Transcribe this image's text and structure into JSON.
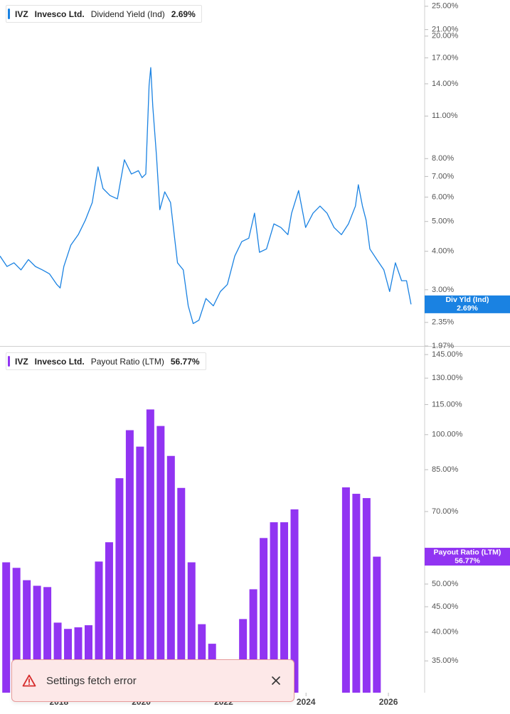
{
  "chart_data": [
    {
      "type": "line",
      "ticker": "IVZ",
      "company": "Invesco Ltd.",
      "last_label": "2.69%",
      "tag": [
        "Div Yld (Ind)",
        "2.69%"
      ],
      "log_scale": true,
      "xlim": [
        2016.57,
        2026.88
      ],
      "ylim": [
        1.97,
        26.2
      ],
      "yticks": [
        {
          "value": 25,
          "label": "25.00%"
        },
        {
          "value": 21,
          "label": "21.00%"
        },
        {
          "value": 20,
          "label": "20.00%"
        },
        {
          "value": 17,
          "label": "17.00%"
        },
        {
          "value": 14,
          "label": "14.00%"
        },
        {
          "value": 11,
          "label": "11.00%"
        },
        {
          "value": 8,
          "label": "8.00%"
        },
        {
          "value": 7,
          "label": "7.00%"
        },
        {
          "value": 6,
          "label": "6.00%"
        },
        {
          "value": 5,
          "label": "5.00%"
        },
        {
          "value": 4,
          "label": "4.00%"
        },
        {
          "value": 3,
          "label": "3.00%"
        },
        {
          "value": 2.35,
          "label": "2.35%"
        },
        {
          "value": 1.97,
          "label": "1.97%"
        }
      ],
      "series": [
        {
          "name": "Dividend Yield (Ind)",
          "color": "#1a82e2",
          "x": [
            2016.57,
            2016.74,
            2016.91,
            2017.08,
            2017.26,
            2017.43,
            2017.6,
            2017.77,
            2017.95,
            2018.03,
            2018.12,
            2018.29,
            2018.47,
            2018.64,
            2018.81,
            2018.95,
            2019.07,
            2019.24,
            2019.42,
            2019.59,
            2019.76,
            2019.93,
            2020.02,
            2020.11,
            2020.19,
            2020.23,
            2020.28,
            2020.37,
            2020.45,
            2020.57,
            2020.71,
            2020.8,
            2020.88,
            2021.02,
            2021.14,
            2021.26,
            2021.4,
            2021.57,
            2021.75,
            2021.92,
            2022.09,
            2022.27,
            2022.44,
            2022.61,
            2022.75,
            2022.87,
            2023.04,
            2023.22,
            2023.39,
            2023.56,
            2023.65,
            2023.82,
            2023.99,
            2024.17,
            2024.34,
            2024.51,
            2024.68,
            2024.86,
            2025.03,
            2025.2,
            2025.27,
            2025.37,
            2025.46,
            2025.55,
            2025.72,
            2025.89,
            2026.03,
            2026.17,
            2026.32,
            2026.44,
            2026.55
          ],
          "values": [
            3.86,
            3.57,
            3.67,
            3.48,
            3.76,
            3.57,
            3.48,
            3.38,
            3.12,
            3.04,
            3.57,
            4.19,
            4.53,
            5.04,
            5.76,
            7.52,
            6.4,
            6.07,
            5.92,
            7.93,
            7.13,
            7.31,
            6.94,
            7.13,
            13.85,
            15.8,
            11.8,
            8.14,
            5.46,
            6.24,
            5.76,
            4.53,
            3.67,
            3.48,
            2.66,
            2.33,
            2.39,
            2.81,
            2.66,
            2.96,
            3.12,
            3.86,
            4.3,
            4.41,
            5.32,
            3.97,
            4.07,
            4.91,
            4.78,
            4.53,
            5.32,
            6.3,
            4.78,
            5.32,
            5.61,
            5.32,
            4.78,
            4.53,
            4.91,
            5.61,
            6.58,
            5.61,
            5.04,
            4.07,
            3.76,
            3.48,
            2.96,
            3.67,
            3.21,
            3.21,
            2.69
          ]
        }
      ]
    },
    {
      "type": "bar",
      "ticker": "IVZ",
      "company": "Invesco Ltd.",
      "last_label": "56.77%",
      "tag": [
        "Payout Ratio (LTM)",
        "56.77%"
      ],
      "log_scale": true,
      "xlim": [
        2016.57,
        2026.88
      ],
      "ylim": [
        30.2,
        150.4
      ],
      "xticks": [
        2018,
        2020,
        2022,
        2024,
        2026
      ],
      "yticks": [
        {
          "value": 145,
          "label": "145.00%"
        },
        {
          "value": 130,
          "label": "130.00%"
        },
        {
          "value": 115,
          "label": "115.00%"
        },
        {
          "value": 100,
          "label": "100.00%"
        },
        {
          "value": 85,
          "label": "85.00%"
        },
        {
          "value": 70,
          "label": "70.00%"
        },
        {
          "value": 55,
          "label": "55.00%"
        },
        {
          "value": 50,
          "label": "50.00%"
        },
        {
          "value": 45,
          "label": "45.00%"
        },
        {
          "value": 40,
          "label": "40.00%"
        },
        {
          "value": 35,
          "label": "35.00%"
        }
      ],
      "series": [
        {
          "name": "Payout Ratio (LTM)",
          "color": "#9134f2",
          "x": [
            2016.72,
            2016.97,
            2017.22,
            2017.47,
            2017.72,
            2017.97,
            2018.22,
            2018.47,
            2018.72,
            2018.97,
            2019.22,
            2019.47,
            2019.72,
            2019.97,
            2020.22,
            2020.47,
            2020.72,
            2020.97,
            2021.22,
            2021.47,
            2021.72,
            2021.97,
            2022.22,
            2022.47,
            2022.72,
            2022.97,
            2023.22,
            2023.47,
            2023.72,
            2023.97,
            2024.22,
            2024.47,
            2024.72,
            2024.97,
            2025.22,
            2025.47,
            2025.72
          ],
          "values": [
            55.3,
            53.9,
            50.9,
            49.6,
            49.3,
            41.8,
            40.6,
            40.9,
            41.3,
            55.5,
            60.7,
            81.7,
            102.1,
            94.6,
            112.4,
            104.1,
            90.6,
            78.1,
            55.3,
            41.5,
            37.9,
            null,
            null,
            42.5,
            48.8,
            61.9,
            66.6,
            66.6,
            70.7,
            null,
            null,
            null,
            null,
            78.3,
            76.0,
            74.5,
            56.77
          ]
        }
      ]
    }
  ],
  "toast": {
    "message": "Settings fetch error"
  }
}
